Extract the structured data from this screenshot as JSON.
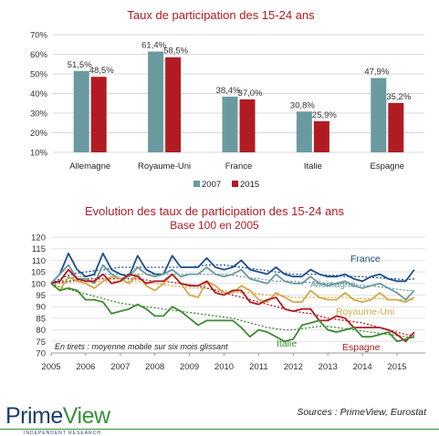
{
  "chart_data": [
    {
      "type": "bar",
      "title": "Taux de participation des 15-24 ans",
      "categories": [
        "Allemagne",
        "Royaume-Uni",
        "France",
        "Italie",
        "Espagne"
      ],
      "series": [
        {
          "name": "2007",
          "color": "#6a9aa0",
          "values": [
            51.5,
            61.4,
            38.4,
            30.8,
            47.9
          ],
          "labels": [
            "51,5%",
            "61,4%",
            "38,4%",
            "30,8%",
            "47,9%"
          ]
        },
        {
          "name": "2015",
          "color": "#b01c22",
          "values": [
            48.5,
            58.5,
            37.0,
            25.9,
            35.2
          ],
          "labels": [
            "48,5%",
            "58,5%",
            "37,0%",
            "25,9%",
            "35,2%"
          ]
        }
      ],
      "ylim": [
        10,
        70
      ],
      "yticks": [
        "10%",
        "20%",
        "30%",
        "40%",
        "50%",
        "60%",
        "70%"
      ],
      "legend": "bottom"
    },
    {
      "type": "line",
      "title": "Evolution des taux de participation des 15-24 ans",
      "subtitle": "Base 100 en 2005",
      "x_ticks": [
        "2005",
        "2006",
        "2007",
        "2008",
        "2009",
        "2010",
        "2011",
        "2012",
        "2013",
        "2014",
        "2015"
      ],
      "ylim": [
        70,
        120
      ],
      "yticks": [
        "70",
        "75",
        "80",
        "85",
        "90",
        "95",
        "100",
        "105",
        "110",
        "115",
        "120"
      ],
      "annotation": "En tirets : moyenne mobile sur six mois glissant",
      "series": [
        {
          "name": "France",
          "color": "#1f4e8c",
          "values": [
            100,
            104,
            113,
            106,
            103,
            104,
            113,
            106,
            104,
            103,
            112,
            106,
            104,
            104,
            112,
            107,
            107,
            107,
            111,
            107,
            106,
            107,
            110,
            106,
            105,
            104,
            107,
            104,
            103,
            103,
            106,
            104,
            103,
            103,
            104,
            102,
            101,
            103,
            104,
            102,
            101,
            101,
            106
          ],
          "trend": [
            100,
            102,
            103.5,
            104.5,
            105,
            105.5,
            106,
            106.5,
            107,
            107,
            107,
            107,
            107,
            107,
            107,
            107,
            107,
            107.5,
            108,
            108,
            108,
            107.5,
            107,
            106.5,
            106,
            105.5,
            105,
            104.5,
            104,
            104,
            104,
            104,
            103.5,
            103.5,
            103,
            103,
            103,
            102.5,
            102.5,
            102,
            102,
            101.5,
            102
          ]
        },
        {
          "name": "Allemagne",
          "color": "#6a9aa0",
          "values": [
            100,
            104,
            108,
            102,
            102,
            100,
            108,
            104,
            102,
            103,
            107,
            104,
            103,
            104,
            106,
            103,
            104,
            104,
            107,
            104,
            103,
            104,
            106,
            102,
            101,
            100,
            104,
            101,
            100,
            100,
            103,
            100,
            99,
            100,
            101,
            99,
            98,
            99,
            100,
            98,
            96,
            93,
            97
          ],
          "trend": [
            100,
            101,
            102,
            103,
            103,
            103.5,
            104,
            104,
            104,
            104,
            104,
            104,
            104,
            104,
            104,
            104,
            104,
            104,
            104,
            104,
            104,
            103.5,
            103,
            102.5,
            102,
            101.5,
            101,
            101,
            101,
            100.5,
            100.5,
            100,
            100,
            100,
            100,
            99.5,
            99,
            99,
            98.5,
            98,
            97.5,
            97,
            97
          ]
        },
        {
          "name": "Royaume-Uni",
          "color": "#d4a84a",
          "values": [
            100,
            97,
            103,
            101,
            100,
            98,
            101,
            103,
            102,
            100,
            104,
            99,
            97,
            100,
            104,
            100,
            95,
            94,
            101,
            99,
            96,
            96,
            99,
            97,
            93,
            92,
            96,
            94,
            92,
            92,
            97,
            94,
            93,
            93,
            96,
            93,
            92,
            93,
            96,
            93,
            93,
            92,
            94
          ],
          "trend": [
            100,
            100,
            100.5,
            101,
            101,
            101,
            101,
            101,
            101,
            101,
            101,
            100.5,
            100,
            99.5,
            99,
            98.5,
            98,
            98,
            98,
            97.5,
            97,
            96.5,
            96,
            96,
            95.5,
            95,
            95,
            94.5,
            94,
            94,
            94,
            94,
            94,
            94,
            94,
            93.5,
            93.5,
            93.5,
            93.5,
            93,
            93,
            93,
            93
          ]
        },
        {
          "name": "Espagne",
          "color": "#b01c22",
          "values": [
            100,
            101,
            106,
            102,
            101,
            101,
            104,
            100,
            101,
            104,
            103,
            100,
            101,
            101,
            104,
            100,
            99,
            99,
            101,
            96,
            95,
            97,
            97,
            92,
            91,
            93,
            94,
            89,
            88,
            89,
            89,
            84,
            84,
            86,
            85,
            81,
            81,
            81,
            81,
            80,
            78,
            75,
            79
          ],
          "trend": [
            100,
            100.5,
            101,
            101.5,
            102,
            102,
            102,
            102,
            102,
            102,
            102,
            101.5,
            101,
            101,
            100.5,
            100,
            99.5,
            99,
            98,
            97,
            96,
            95,
            94,
            93,
            92,
            91,
            90,
            89,
            88,
            87.5,
            87,
            86,
            85,
            84.5,
            84,
            83.5,
            83,
            82,
            81,
            80,
            79,
            78,
            77.5
          ]
        },
        {
          "name": "Italie",
          "color": "#3f8a34",
          "values": [
            100,
            97,
            98,
            97,
            93,
            93,
            92,
            87,
            88,
            89,
            91,
            89,
            86,
            86,
            90,
            88,
            85,
            82,
            84,
            84,
            84,
            84,
            81,
            77,
            80,
            79,
            77,
            75,
            76,
            82,
            83,
            84,
            80,
            79,
            80,
            81,
            77,
            77,
            78,
            79,
            75,
            76,
            77
          ],
          "trend": [
            100,
            98.5,
            97.5,
            96.5,
            95.5,
            94.5,
            93.5,
            92.5,
            91.5,
            91,
            90.5,
            90,
            89.5,
            89,
            88.5,
            88,
            87.5,
            87,
            86.5,
            86,
            85.5,
            85,
            84,
            83,
            82,
            81,
            80.5,
            80,
            80,
            80.5,
            81,
            81.5,
            81.5,
            81,
            80.5,
            80,
            79.5,
            79,
            78.5,
            78,
            77.5,
            77,
            76.5
          ]
        }
      ]
    }
  ],
  "footer": {
    "logo_prime": "Prime",
    "logo_view": "View",
    "logo_sub": "INDEPENDENT RESEARCH",
    "sources": "Sources : PrimeView, Eurostat"
  }
}
